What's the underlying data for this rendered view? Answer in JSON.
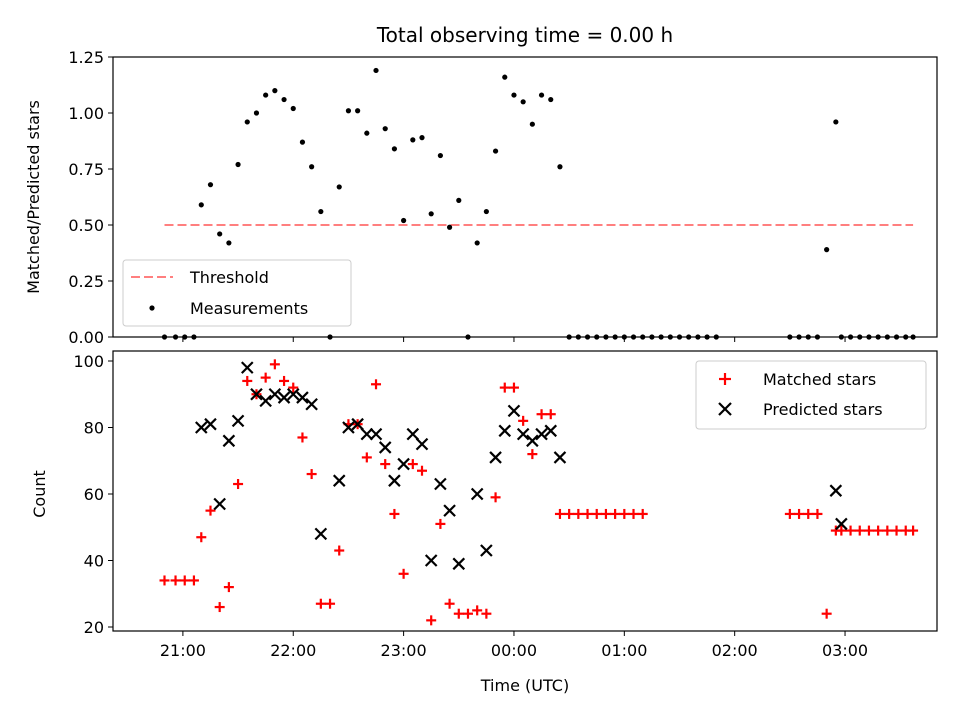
{
  "chart_data": [
    {
      "type": "line",
      "title": "Total observing time = 0.00 h",
      "xlabel": "",
      "ylabel": "Matched/Predicted stars",
      "ylim": [
        0,
        1.25
      ],
      "yticks": [
        0.0,
        0.25,
        0.5,
        0.75,
        1.0,
        1.25
      ],
      "ytick_labels": [
        "0.00",
        "0.25",
        "0.50",
        "0.75",
        "1.00",
        "1.25"
      ],
      "xtick_labels_hidden": true,
      "legend": {
        "location": "lower left",
        "entries": [
          {
            "label": "Threshold",
            "style": "dashed-line",
            "color": "#ff7f7f"
          },
          {
            "label": "Measurements",
            "style": "dot",
            "color": "#000000"
          }
        ]
      },
      "series": [
        {
          "name": "Threshold",
          "kind": "line",
          "color": "#ff7f7f",
          "x": [
            "20:50",
            "03:37"
          ],
          "y": [
            0.5,
            0.5
          ]
        },
        {
          "name": "Measurements",
          "kind": "scatter",
          "color": "#000000",
          "x": [
            "20:50",
            "20:56",
            "21:01",
            "21:06",
            "21:10",
            "21:15",
            "21:20",
            "21:25",
            "21:30",
            "21:35",
            "21:40",
            "21:45",
            "21:50",
            "21:55",
            "22:00",
            "22:05",
            "22:10",
            "22:15",
            "22:20",
            "22:25",
            "22:30",
            "22:35",
            "22:40",
            "22:45",
            "22:50",
            "22:55",
            "23:00",
            "23:05",
            "23:10",
            "23:15",
            "23:20",
            "23:25",
            "23:30",
            "23:35",
            "23:40",
            "23:45",
            "23:50",
            "23:55",
            "00:00",
            "00:05",
            "00:10",
            "00:15",
            "00:20",
            "00:25",
            "00:30",
            "00:35",
            "00:40",
            "00:45",
            "00:50",
            "00:55",
            "01:00",
            "01:05",
            "01:10",
            "01:15",
            "01:20",
            "01:25",
            "01:30",
            "01:35",
            "01:40",
            "01:45",
            "01:50",
            "02:40",
            "02:45",
            "02:50",
            "02:55",
            "02:58",
            "03:03",
            "03:08",
            "03:13",
            "03:18",
            "03:23",
            "03:28",
            "03:33",
            "03:37",
            "02:35",
            "02:30"
          ],
          "y": [
            0.0,
            0.0,
            0.0,
            0.0,
            0.59,
            0.68,
            0.46,
            0.42,
            0.77,
            0.96,
            1.0,
            1.08,
            1.1,
            1.06,
            1.02,
            0.87,
            0.76,
            0.56,
            0.0,
            0.67,
            1.01,
            1.01,
            0.91,
            1.19,
            0.93,
            0.84,
            0.52,
            0.88,
            0.89,
            0.55,
            0.81,
            0.49,
            0.61,
            0.0,
            0.42,
            0.56,
            0.83,
            1.16,
            1.08,
            1.05,
            0.95,
            1.08,
            1.06,
            0.76,
            0.0,
            0.0,
            0.0,
            0.0,
            0.0,
            0.0,
            0.0,
            0.0,
            0.0,
            0.0,
            0.0,
            0.0,
            0.0,
            0.0,
            0.0,
            0.0,
            0.0,
            0.0,
            0.0,
            0.39,
            0.96,
            0.0,
            0.0,
            0.0,
            0.0,
            0.0,
            0.0,
            0.0,
            0.0,
            0.0,
            0.0,
            0.0
          ]
        }
      ]
    },
    {
      "type": "scatter",
      "title": "",
      "xlabel": "Time (UTC)",
      "ylabel": "Count",
      "ylim": [
        20,
        100
      ],
      "yticks": [
        20,
        40,
        60,
        80,
        100
      ],
      "ytick_labels": [
        "20",
        "40",
        "60",
        "80",
        "100"
      ],
      "xticks": [
        "21:00",
        "22:00",
        "23:00",
        "00:00",
        "01:00",
        "02:00",
        "03:00"
      ],
      "legend": {
        "location": "upper right",
        "entries": [
          {
            "label": "Matched stars",
            "style": "plus",
            "color": "#ff0000"
          },
          {
            "label": "Predicted stars",
            "style": "cross",
            "color": "#000000"
          }
        ]
      },
      "series": [
        {
          "name": "Matched stars",
          "kind": "plus",
          "color": "#ff0000",
          "x": [
            "20:50",
            "20:56",
            "21:01",
            "21:06",
            "21:10",
            "21:15",
            "21:20",
            "21:25",
            "21:30",
            "21:35",
            "21:40",
            "21:45",
            "21:50",
            "21:55",
            "22:00",
            "22:05",
            "22:10",
            "22:15",
            "22:20",
            "22:25",
            "22:30",
            "22:35",
            "22:40",
            "22:45",
            "22:50",
            "22:55",
            "23:00",
            "23:05",
            "23:10",
            "23:15",
            "23:20",
            "23:25",
            "23:30",
            "23:35",
            "23:40",
            "23:45",
            "23:50",
            "23:55",
            "00:00",
            "00:05",
            "00:10",
            "00:15",
            "00:20",
            "00:25",
            "00:30",
            "00:35",
            "00:40",
            "00:45",
            "00:50",
            "00:55",
            "01:00",
            "01:05",
            "01:10",
            "02:30",
            "02:35",
            "02:40",
            "02:45",
            "02:50",
            "02:55",
            "02:58",
            "03:03",
            "03:08",
            "03:13",
            "03:18",
            "03:23",
            "03:28",
            "03:33",
            "03:37"
          ],
          "y": [
            34,
            34,
            34,
            34,
            47,
            55,
            26,
            32,
            63,
            94,
            90,
            95,
            99,
            94,
            92,
            77,
            66,
            27,
            27,
            43,
            81,
            81,
            71,
            93,
            69,
            54,
            36,
            69,
            67,
            22,
            51,
            27,
            24,
            24,
            25,
            24,
            59,
            92,
            92,
            82,
            72,
            84,
            84,
            54,
            54,
            54,
            54,
            54,
            54,
            54,
            54,
            54,
            54,
            54,
            54,
            54,
            54,
            24,
            49,
            49,
            49,
            49,
            49,
            49,
            49,
            49,
            49,
            49
          ]
        },
        {
          "name": "Predicted stars",
          "kind": "cross",
          "color": "#000000",
          "x": [
            "21:10",
            "21:15",
            "21:20",
            "21:25",
            "21:30",
            "21:35",
            "21:40",
            "21:45",
            "21:50",
            "21:55",
            "22:00",
            "22:05",
            "22:10",
            "22:15",
            "22:25",
            "22:30",
            "22:35",
            "22:40",
            "22:45",
            "22:50",
            "22:55",
            "23:00",
            "23:05",
            "23:10",
            "23:15",
            "23:20",
            "23:25",
            "23:30",
            "23:40",
            "23:45",
            "23:50",
            "23:55",
            "00:00",
            "00:05",
            "00:10",
            "00:15",
            "00:20",
            "00:25",
            "02:55",
            "02:58"
          ],
          "y": [
            80,
            81,
            57,
            76,
            82,
            98,
            90,
            88,
            90,
            89,
            90,
            89,
            87,
            48,
            64,
            80,
            81,
            78,
            78,
            74,
            64,
            69,
            78,
            75,
            40,
            63,
            55,
            39,
            60,
            43,
            71,
            79,
            85,
            78,
            76,
            78,
            79,
            71,
            61,
            51
          ]
        }
      ]
    }
  ]
}
